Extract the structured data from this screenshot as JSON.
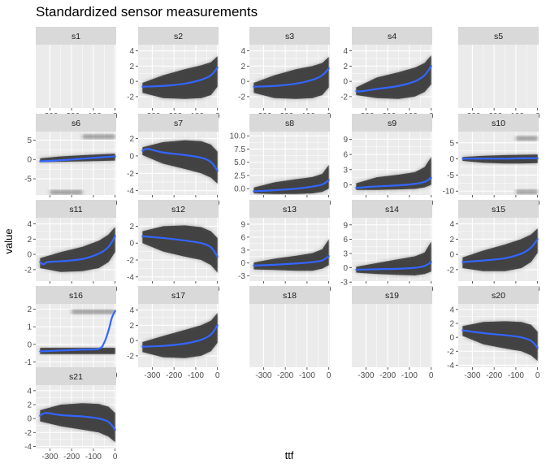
{
  "chart_data": {
    "type": "line",
    "title": "Standardized sensor measurements",
    "xlabel": "ttf",
    "ylabel": "value",
    "x_ticks": [
      "-300",
      "-200",
      "-100",
      "0"
    ],
    "x_tick_values": [
      -300,
      -200,
      -100,
      0
    ],
    "xlim": [
      -365,
      5
    ],
    "grid": true,
    "series_color": "#3366ff",
    "band_color": "#333333",
    "panel_background": "#ebebeb",
    "strip_background": "#d9d9d9",
    "panels": [
      {
        "name": "s1",
        "empty": true
      },
      {
        "name": "s2",
        "ylim": [
          -3.5,
          4.8
        ],
        "y_ticks": [
          -2,
          0,
          2,
          4
        ],
        "x": [
          -345,
          -250,
          -150,
          -75,
          -30,
          0
        ],
        "y": [
          -0.7,
          -0.6,
          -0.3,
          0.2,
          0.8,
          1.8
        ],
        "band": {
          "x": [
            -345,
            -250,
            -150,
            -75,
            -30,
            0
          ],
          "lo": [
            -1.5,
            -2.2,
            -2.3,
            -2.2,
            -1.8,
            -0.7
          ],
          "hi": [
            -0.2,
            0.8,
            1.6,
            2.1,
            2.5,
            3.3
          ]
        }
      },
      {
        "name": "s3",
        "ylim": [
          -3.5,
          4.8
        ],
        "y_ticks": [
          -2,
          0,
          2,
          4
        ],
        "x": [
          -345,
          -250,
          -150,
          -75,
          -30,
          0
        ],
        "y": [
          -0.7,
          -0.6,
          -0.3,
          0.2,
          0.8,
          1.7
        ],
        "band": {
          "x": [
            -345,
            -250,
            -150,
            -75,
            -30,
            0
          ],
          "lo": [
            -1.5,
            -2.2,
            -2.3,
            -2.2,
            -1.8,
            -0.8
          ],
          "hi": [
            -0.2,
            0.8,
            1.6,
            2.0,
            2.4,
            3.2
          ]
        }
      },
      {
        "name": "s4",
        "ylim": [
          -3.5,
          4.8
        ],
        "y_ticks": [
          -2,
          0,
          2,
          4
        ],
        "x": [
          -345,
          -320,
          -250,
          -150,
          -75,
          -30,
          0
        ],
        "y": [
          -1.3,
          -1.3,
          -1.0,
          -0.6,
          0.0,
          0.8,
          2.0
        ],
        "band": {
          "x": [
            -345,
            -250,
            -150,
            -75,
            -30,
            0
          ],
          "lo": [
            -1.8,
            -2.2,
            -2.3,
            -2.0,
            -1.4,
            -0.4
          ],
          "hi": [
            -0.8,
            0.5,
            1.2,
            1.8,
            2.4,
            3.4
          ]
        }
      },
      {
        "name": "s5",
        "empty": true
      },
      {
        "name": "s6",
        "ylim": [
          -9.2,
          7.2
        ],
        "y_ticks": [
          -5,
          0,
          5
        ],
        "x": [
          -345,
          -250,
          -150,
          -75,
          0
        ],
        "y": [
          -0.5,
          -0.2,
          0.2,
          0.5,
          0.8
        ],
        "band": {
          "x": [
            -345,
            -250,
            -150,
            -75,
            0
          ],
          "lo": [
            -0.7,
            -0.6,
            -0.5,
            -0.4,
            -0.3
          ],
          "hi": [
            0.3,
            0.8,
            1.1,
            1.3,
            1.5
          ]
        },
        "outlier_bands": [
          {
            "x0": -150,
            "x1": 0,
            "y": 5.9
          },
          {
            "x0": -300,
            "x1": -150,
            "y": -8.5
          }
        ]
      },
      {
        "name": "s7",
        "ylim": [
          -4.5,
          2.8
        ],
        "y_ticks": [
          -4,
          -2,
          0,
          2
        ],
        "x": [
          -345,
          -320,
          -250,
          -150,
          -75,
          -30,
          0
        ],
        "y": [
          0.6,
          0.8,
          0.4,
          0.1,
          -0.2,
          -0.7,
          -1.7
        ],
        "band": {
          "x": [
            -345,
            -250,
            -150,
            -75,
            -30,
            0
          ],
          "lo": [
            0.1,
            -0.9,
            -1.5,
            -2.0,
            -2.5,
            -3.2
          ],
          "hi": [
            1.0,
            1.6,
            1.8,
            1.7,
            1.3,
            0.5
          ]
        }
      },
      {
        "name": "s8",
        "ylim": [
          -1.2,
          10.8
        ],
        "y_ticks": [
          0.0,
          2.5,
          5.0,
          7.5,
          10.0
        ],
        "tick_decimals": 1,
        "x": [
          -345,
          -250,
          -150,
          -75,
          -30,
          0
        ],
        "y": [
          -0.5,
          -0.3,
          0.0,
          0.4,
          0.8,
          1.6
        ],
        "band": {
          "x": [
            -345,
            -250,
            -150,
            -75,
            -30,
            0
          ],
          "lo": [
            -0.9,
            -1.0,
            -1.0,
            -0.9,
            -0.6,
            0.0
          ],
          "hi": [
            0.2,
            1.2,
            1.8,
            2.2,
            2.8,
            4.5
          ]
        }
      },
      {
        "name": "s9",
        "ylim": [
          -2.0,
          10.5
        ],
        "y_ticks": [
          0,
          3,
          6,
          9
        ],
        "x": [
          -345,
          -250,
          -150,
          -75,
          -30,
          0
        ],
        "y": [
          -0.6,
          -0.3,
          -0.1,
          0.2,
          0.6,
          1.4
        ],
        "band": {
          "x": [
            -345,
            -250,
            -150,
            -75,
            -30,
            0
          ],
          "lo": [
            -1.0,
            -1.0,
            -0.9,
            -0.8,
            -0.5,
            0.0
          ],
          "hi": [
            0.3,
            1.5,
            2.0,
            2.5,
            3.5,
            5.5
          ]
        }
      },
      {
        "name": "s10",
        "ylim": [
          -11.2,
          8.5
        ],
        "y_ticks": [
          -10,
          -5,
          0,
          5
        ],
        "x": [
          -345,
          -250,
          -150,
          -75,
          0
        ],
        "y": [
          0.1,
          0.1,
          0.1,
          0.2,
          0.2
        ],
        "band": {
          "x": [
            -345,
            -250,
            -150,
            -75,
            0
          ],
          "lo": [
            -0.6,
            -1.2,
            -1.4,
            -1.4,
            -1.3
          ],
          "hi": [
            0.6,
            1.0,
            1.2,
            1.3,
            1.4
          ]
        },
        "outlier_bands": [
          {
            "x0": -100,
            "x1": 0,
            "y": 6.4
          },
          {
            "x0": -100,
            "x1": 0,
            "y": -10.2
          }
        ]
      },
      {
        "name": "s11",
        "ylim": [
          -3.5,
          4.8
        ],
        "y_ticks": [
          -2,
          0,
          2,
          4
        ],
        "x": [
          -345,
          -330,
          -310,
          -250,
          -150,
          -75,
          -30,
          0
        ],
        "y": [
          -1.0,
          -1.3,
          -1.0,
          -0.9,
          -0.6,
          0.1,
          1.0,
          2.4
        ],
        "band": {
          "x": [
            -345,
            -250,
            -150,
            -75,
            -30,
            0
          ],
          "lo": [
            -1.8,
            -2.3,
            -2.2,
            -1.8,
            -1.0,
            0.3
          ],
          "hi": [
            -0.5,
            0.3,
            1.0,
            1.8,
            2.6,
            3.6
          ]
        }
      },
      {
        "name": "s12",
        "ylim": [
          -4.5,
          3.0
        ],
        "y_ticks": [
          -4,
          -2,
          0,
          2
        ],
        "x": [
          -345,
          -250,
          -150,
          -75,
          -30,
          0
        ],
        "y": [
          0.8,
          0.6,
          0.3,
          0.0,
          -0.5,
          -1.6
        ],
        "band": {
          "x": [
            -345,
            -250,
            -150,
            -75,
            -30,
            0
          ],
          "lo": [
            0.0,
            -1.0,
            -1.6,
            -2.0,
            -2.6,
            -3.5
          ],
          "hi": [
            1.4,
            2.0,
            2.1,
            1.9,
            1.4,
            0.6
          ]
        }
      },
      {
        "name": "s13",
        "ylim": [
          -4.2,
          10.5
        ],
        "y_ticks": [
          -3,
          0,
          3,
          6,
          9
        ],
        "x": [
          -345,
          -250,
          -150,
          -75,
          -30,
          0
        ],
        "y": [
          -0.6,
          -0.4,
          -0.1,
          0.2,
          0.6,
          1.6
        ],
        "band": {
          "x": [
            -345,
            -250,
            -150,
            -75,
            -30,
            0
          ],
          "lo": [
            -1.5,
            -1.6,
            -1.8,
            -1.8,
            -1.3,
            -0.5
          ],
          "hi": [
            0.1,
            1.0,
            1.7,
            2.3,
            3.2,
            5.5
          ]
        }
      },
      {
        "name": "s14",
        "ylim": [
          -2.8,
          10.5
        ],
        "y_ticks": [
          -3,
          0,
          3,
          6,
          9
        ],
        "x": [
          -345,
          -250,
          -150,
          -75,
          -30,
          0
        ],
        "y": [
          -0.4,
          -0.3,
          -0.2,
          0.0,
          0.4,
          1.2
        ],
        "band": {
          "x": [
            -345,
            -250,
            -150,
            -75,
            -30,
            0
          ],
          "lo": [
            -1.0,
            -1.3,
            -1.5,
            -1.6,
            -1.3,
            -0.8
          ],
          "hi": [
            0.2,
            1.0,
            1.8,
            2.4,
            3.2,
            5.5
          ]
        }
      },
      {
        "name": "s15",
        "ylim": [
          -3.5,
          4.8
        ],
        "y_ticks": [
          -2,
          0,
          2,
          4
        ],
        "x": [
          -345,
          -250,
          -150,
          -75,
          -30,
          0
        ],
        "y": [
          -1.0,
          -0.8,
          -0.5,
          0.1,
          0.9,
          2.0
        ],
        "band": {
          "x": [
            -345,
            -250,
            -150,
            -75,
            -30,
            0
          ],
          "lo": [
            -1.8,
            -2.2,
            -2.2,
            -1.8,
            -1.0,
            0.2
          ],
          "hi": [
            -0.4,
            0.5,
            1.3,
            2.0,
            2.6,
            3.4
          ]
        }
      },
      {
        "name": "s16",
        "ylim": [
          -1.3,
          2.3
        ],
        "y_ticks": [
          -1,
          0,
          1,
          2
        ],
        "x": [
          -345,
          -250,
          -150,
          -75,
          -50,
          -30,
          -15,
          0
        ],
        "y": [
          -0.4,
          -0.35,
          -0.3,
          -0.25,
          0.1,
          0.8,
          1.5,
          1.9
        ],
        "band": {
          "x": [
            -345,
            -250,
            -150,
            -75,
            0
          ],
          "lo": [
            -0.55,
            -0.55,
            -0.55,
            -0.55,
            -0.55
          ],
          "hi": [
            -0.2,
            -0.2,
            -0.2,
            -0.2,
            -0.2
          ]
        },
        "outlier_bands": [
          {
            "x0": -200,
            "x1": 0,
            "y": 1.85
          }
        ]
      },
      {
        "name": "s17",
        "ylim": [
          -3.5,
          4.8
        ],
        "y_ticks": [
          -2,
          0,
          2,
          4
        ],
        "x": [
          -345,
          -250,
          -150,
          -75,
          -30,
          0
        ],
        "y": [
          -0.8,
          -0.7,
          -0.4,
          0.1,
          0.8,
          2.0
        ],
        "band": {
          "x": [
            -345,
            -250,
            -150,
            -75,
            -30,
            0
          ],
          "lo": [
            -1.5,
            -2.2,
            -2.3,
            -2.0,
            -1.4,
            -0.3
          ],
          "hi": [
            -0.2,
            0.6,
            1.4,
            2.0,
            2.6,
            3.6
          ]
        }
      },
      {
        "name": "s18",
        "empty": true
      },
      {
        "name": "s19",
        "empty": true
      },
      {
        "name": "s20",
        "ylim": [
          -4.3,
          4.8
        ],
        "y_ticks": [
          -4,
          -2,
          0,
          2,
          4
        ],
        "x": [
          -345,
          -250,
          -150,
          -75,
          -30,
          0
        ],
        "y": [
          1.0,
          0.6,
          0.3,
          0.0,
          -0.5,
          -1.5
        ],
        "band": {
          "x": [
            -345,
            -250,
            -150,
            -75,
            -30,
            0
          ],
          "lo": [
            0.2,
            -1.0,
            -1.6,
            -2.0,
            -2.6,
            -3.4
          ],
          "hi": [
            1.6,
            2.2,
            2.3,
            2.2,
            1.8,
            0.8
          ]
        }
      },
      {
        "name": "s21",
        "ylim": [
          -4.3,
          4.8
        ],
        "y_ticks": [
          -4,
          -2,
          0,
          2,
          4
        ],
        "x": [
          -345,
          -320,
          -250,
          -150,
          -75,
          -30,
          0
        ],
        "y": [
          0.4,
          0.8,
          0.5,
          0.3,
          0.0,
          -0.5,
          -1.6
        ],
        "band": {
          "x": [
            -345,
            -250,
            -150,
            -75,
            -30,
            0
          ],
          "lo": [
            -0.4,
            -1.1,
            -1.6,
            -2.0,
            -2.6,
            -3.4
          ],
          "hi": [
            1.2,
            2.0,
            2.2,
            2.1,
            1.7,
            0.8
          ]
        }
      }
    ]
  }
}
